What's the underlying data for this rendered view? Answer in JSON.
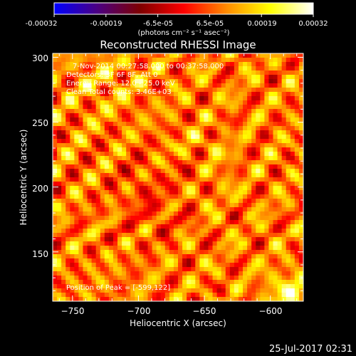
{
  "colorbar": {
    "ticks": [
      "-0.00032",
      "-0.00019",
      "-6.5e-05",
      "6.5e-05",
      "0.00019",
      "0.00032"
    ],
    "unit_label": "(photons cm⁻² s⁻¹ asec⁻²)",
    "colormap": [
      "#0000ff",
      "#4b0082",
      "#7f0000",
      "#ff0000",
      "#ff8c00",
      "#ffff00",
      "#ffffff"
    ]
  },
  "footer": {
    "timestamp": "25-Jul-2017 02:31"
  },
  "chart_data": {
    "type": "heatmap",
    "title": "Reconstructed RHESSI Image",
    "xlabel": "Heliocentric X (arcsec)",
    "ylabel": "Heliocentric Y (arcsec)",
    "xlim": [
      -765,
      -575
    ],
    "ylim": [
      112,
      303
    ],
    "xticks": [
      -750,
      -700,
      -650,
      -600
    ],
    "yticks": [
      150,
      200,
      250,
      300
    ],
    "xtick_labels": [
      "−750",
      "−700",
      "−650",
      "−600"
    ],
    "ytick_labels": [
      "150",
      "200",
      "250",
      "300"
    ],
    "annotations": [
      "7-Nov-2014 00:27:58.000 to 00:37:58.000",
      "Detectors: 3F 6F 8F, Att 0",
      "Energy Range: 12.0 - 25.0 keV",
      "Clean    Total counts: 3.46E+03"
    ],
    "peak_label": "Position of Peak = [-599,122]",
    "peak": [
      -599,
      122
    ],
    "grid": false
  }
}
